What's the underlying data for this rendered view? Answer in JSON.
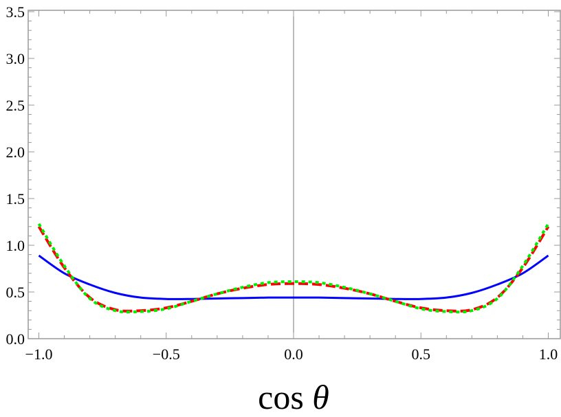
{
  "chart_data": {
    "type": "line",
    "xlabel": "cos θ",
    "xlabel_parts": {
      "text": "cos ",
      "symbol": "θ"
    },
    "ylabel": "",
    "xlim": [
      -1.0,
      1.0
    ],
    "ylim": [
      0.0,
      3.5
    ],
    "x_ticks": [
      "-1.0",
      "-0.5",
      "0.0",
      "0.5",
      "1.0"
    ],
    "x_tick_values": [
      -1.0,
      -0.5,
      0.0,
      0.5,
      1.0
    ],
    "y_ticks": [
      "0.0",
      "0.5",
      "1.0",
      "1.5",
      "2.0",
      "2.5",
      "3.0",
      "3.5"
    ],
    "y_tick_values": [
      0.0,
      0.5,
      1.0,
      1.5,
      2.0,
      2.5,
      3.0,
      3.5
    ],
    "grid": false,
    "x": [
      -1.0,
      -0.9,
      -0.8,
      -0.7,
      -0.6,
      -0.5,
      -0.4,
      -0.3,
      -0.2,
      -0.1,
      0.0,
      0.1,
      0.2,
      0.3,
      0.4,
      0.5,
      0.6,
      0.7,
      0.8,
      0.9,
      1.0
    ],
    "series": [
      {
        "style": "solid",
        "color": "#0000ff",
        "values": [
          0.89,
          0.7,
          0.58,
          0.49,
          0.44,
          0.425,
          0.425,
          0.43,
          0.435,
          0.44,
          0.44,
          0.44,
          0.435,
          0.43,
          0.425,
          0.425,
          0.44,
          0.49,
          0.58,
          0.7,
          0.89
        ]
      },
      {
        "style": "dashed",
        "color": "#ff0000",
        "values": [
          1.2,
          0.76,
          0.44,
          0.31,
          0.3,
          0.33,
          0.4,
          0.48,
          0.54,
          0.58,
          0.59,
          0.58,
          0.54,
          0.48,
          0.4,
          0.33,
          0.3,
          0.31,
          0.44,
          0.76,
          1.2
        ]
      },
      {
        "style": "dotted",
        "color": "#00ee00",
        "values": [
          1.23,
          0.78,
          0.43,
          0.3,
          0.29,
          0.32,
          0.4,
          0.48,
          0.55,
          0.6,
          0.61,
          0.6,
          0.55,
          0.48,
          0.4,
          0.32,
          0.29,
          0.3,
          0.43,
          0.78,
          1.23
        ]
      }
    ]
  }
}
